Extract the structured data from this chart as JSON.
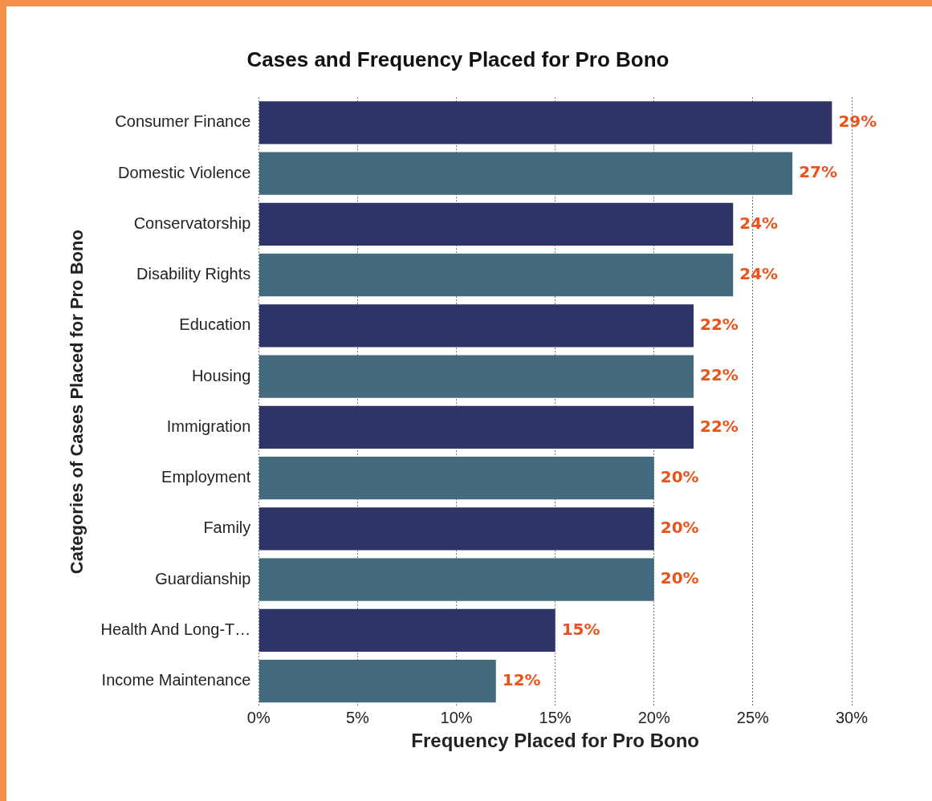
{
  "chart_data": {
    "type": "bar",
    "orientation": "horizontal",
    "title": "Cases and Frequency Placed for Pro Bono",
    "xlabel": "Frequency Placed for Pro Bono",
    "ylabel": "Categories of Cases Placed for Pro Bono",
    "categories": [
      "Consumer Finance",
      "Domestic Violence",
      "Conservatorship",
      "Disability Rights",
      "Education",
      "Housing",
      "Immigration",
      "Employment",
      "Family",
      "Guardianship",
      "Health And Long-T…",
      "Income Maintenance"
    ],
    "values": [
      29,
      27,
      24,
      24,
      22,
      22,
      22,
      20,
      20,
      20,
      15,
      12
    ],
    "colors": [
      "#2e3566",
      "#436a7d",
      "#2e3566",
      "#436a7d",
      "#2e3566",
      "#436a7d",
      "#2e3566",
      "#436a7d",
      "#2e3566",
      "#436a7d",
      "#2e3566",
      "#436a7d"
    ],
    "value_labels": [
      "29%",
      "27%",
      "24%",
      "24%",
      "22%",
      "22%",
      "22%",
      "20%",
      "20%",
      "20%",
      "15%",
      "12%"
    ],
    "xlim": [
      0,
      30
    ],
    "xticks": [
      {
        "value": 0,
        "label": "0%"
      },
      {
        "value": 5,
        "label": "5%"
      },
      {
        "value": 10,
        "label": "10%"
      },
      {
        "value": 15,
        "label": "15%"
      },
      {
        "value": 20,
        "label": "20%"
      },
      {
        "value": 25,
        "label": "25%"
      },
      {
        "value": 30,
        "label": "30%"
      }
    ],
    "grid": "x",
    "legend": false
  }
}
